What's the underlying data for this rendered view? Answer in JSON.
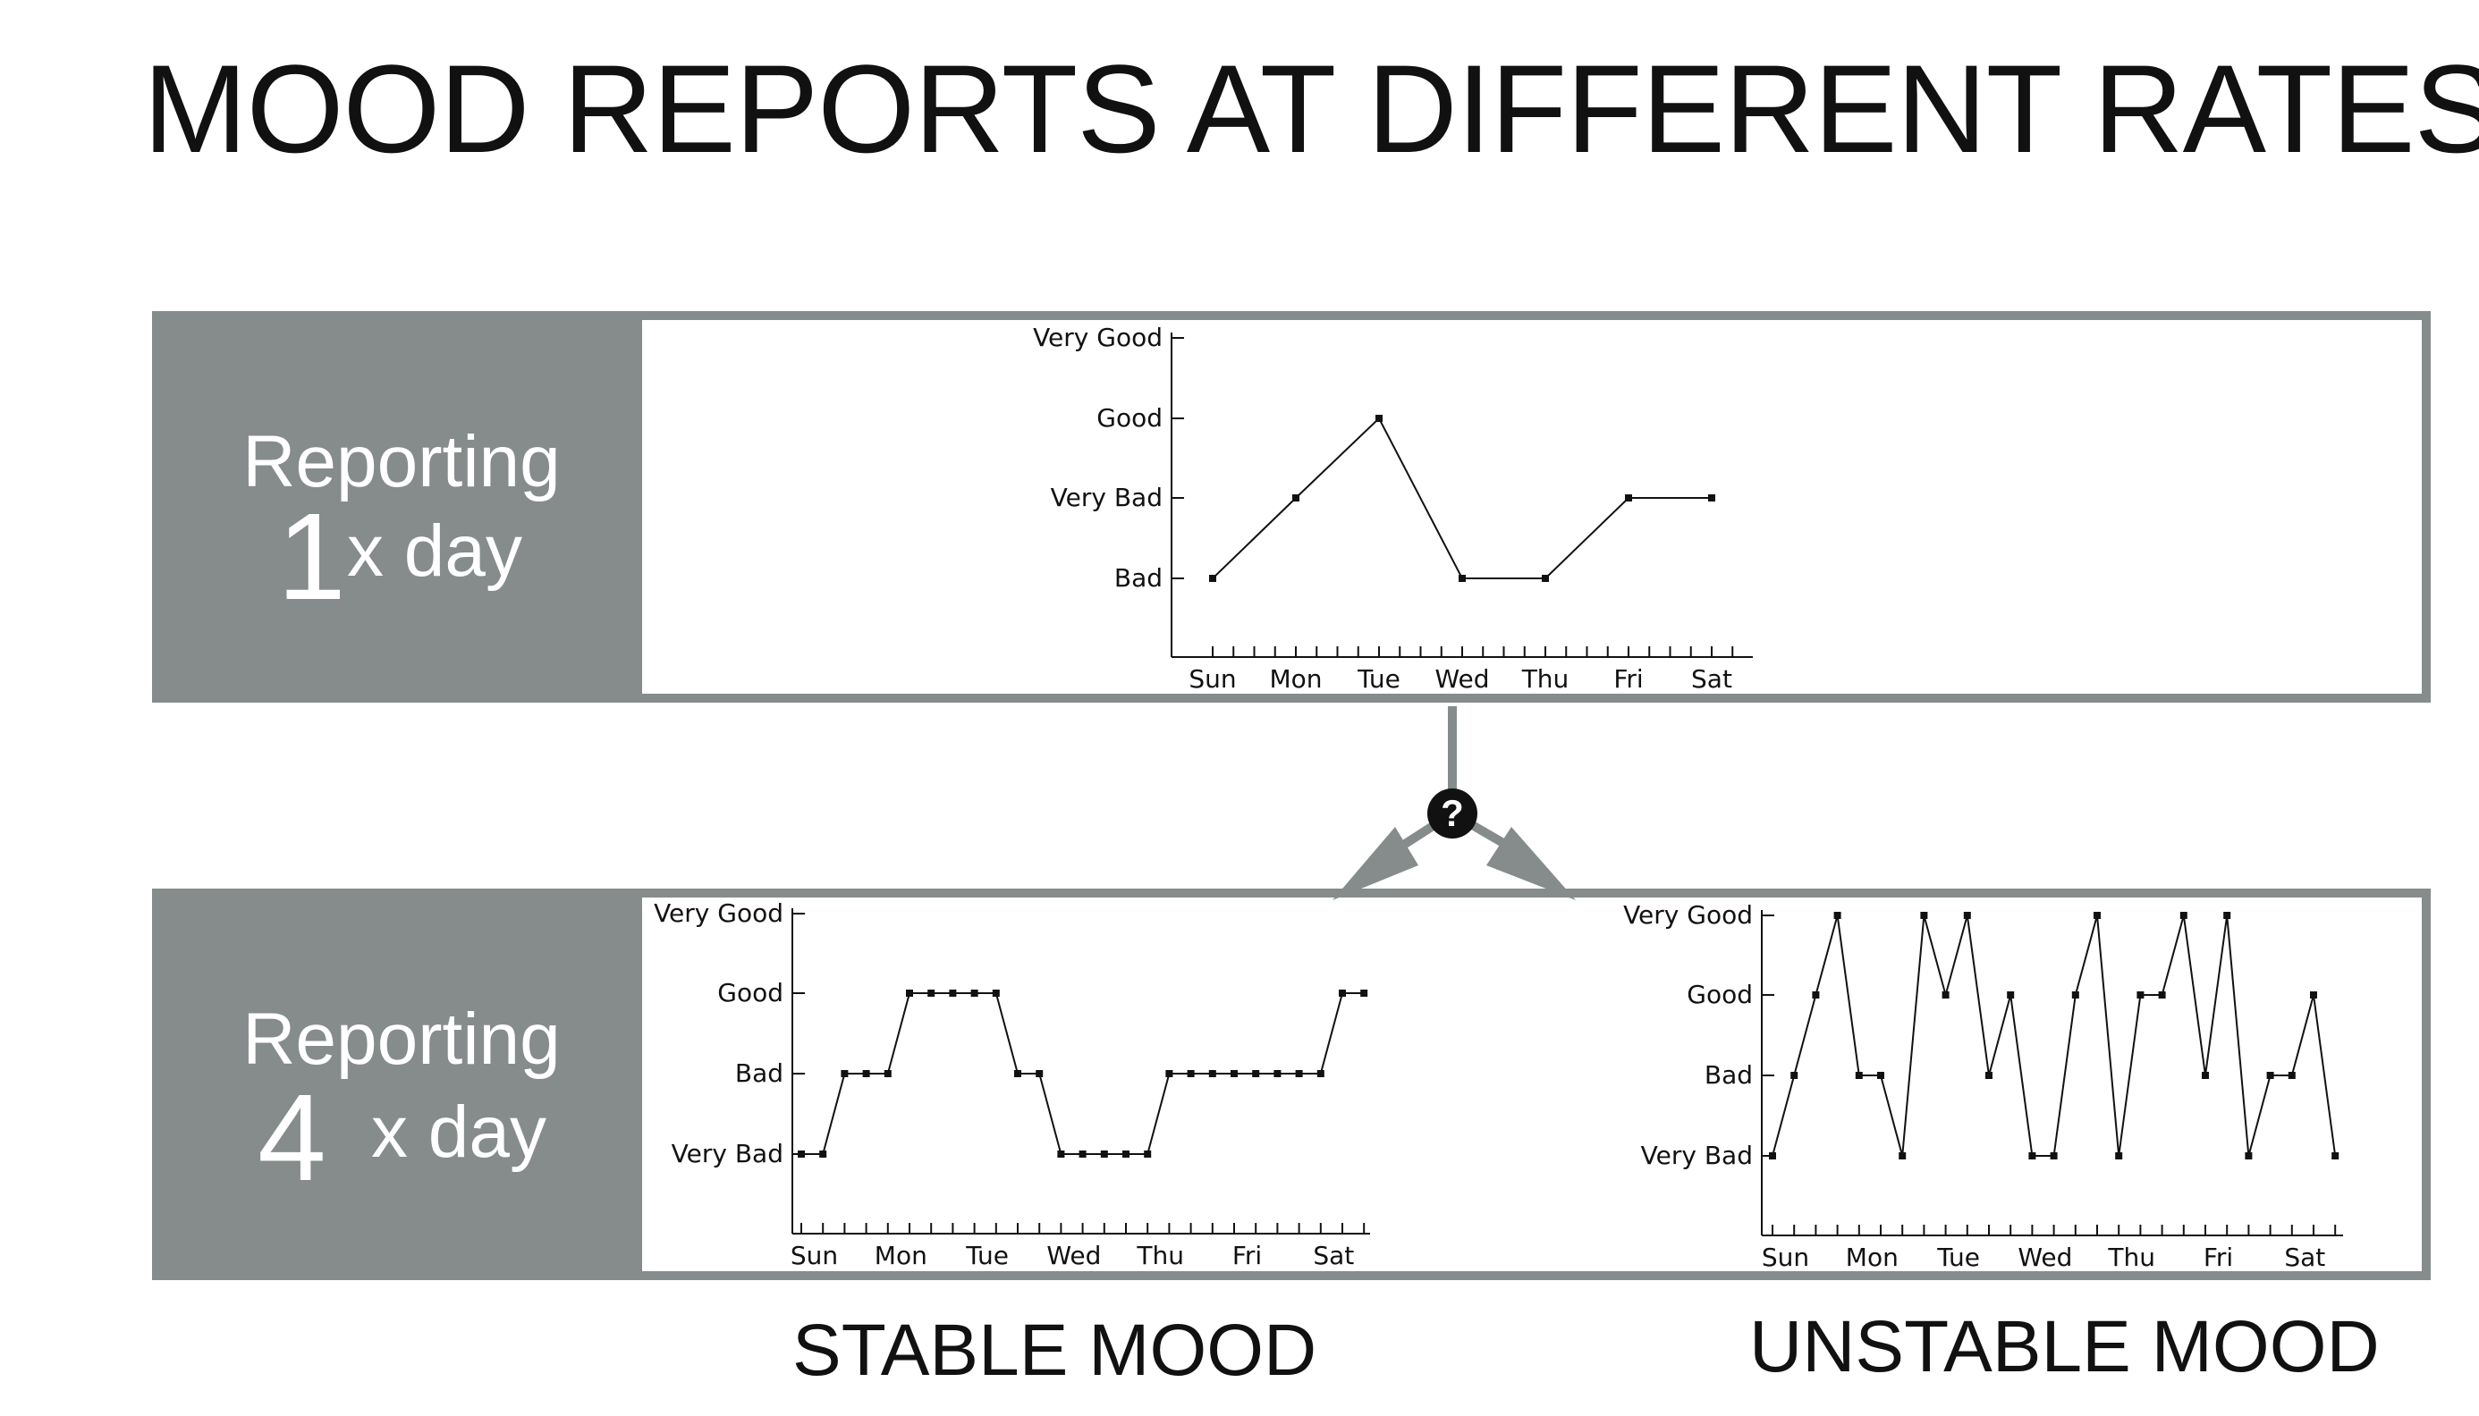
{
  "title": "MOOD REPORTS AT DIFFERENT RATES",
  "rows": [
    {
      "word": "Reporting",
      "number": "1",
      "rate": "x day"
    },
    {
      "word": "Reporting",
      "number": "4",
      "rate": "x day"
    }
  ],
  "connector_badge": "?",
  "captions": {
    "stable": "STABLE MOOD",
    "unstable": "UNSTABLE MOOD"
  },
  "colors": {
    "panel": "#858c8b",
    "line": "#111111"
  },
  "chart_data": [
    {
      "type": "line",
      "points_per_day": 1,
      "y_levels_top_to_bottom": [
        "Very Good",
        "Good",
        "Very Bad",
        "Bad"
      ],
      "x_tick_labels": [
        "Sun",
        "Mon",
        "Tue",
        "Wed",
        "Thu",
        "Fri",
        "Sat"
      ],
      "series": [
        {
          "values": [
            "Bad",
            "Very Bad",
            "Good",
            "Bad",
            "Bad",
            "Very Bad",
            "Very Bad"
          ]
        }
      ]
    },
    {
      "type": "line",
      "points_per_day": 4,
      "y_levels_top_to_bottom": [
        "Very Good",
        "Good",
        "Bad",
        "Very Bad"
      ],
      "x_tick_labels": [
        "Sun",
        "Mon",
        "Tue",
        "Wed",
        "Thu",
        "Fri",
        "Sat"
      ],
      "series": [
        {
          "values": [
            "Very Bad",
            "Very Bad",
            "Bad",
            "Bad",
            "Bad",
            "Good",
            "Good",
            "Good",
            "Good",
            "Good",
            "Bad",
            "Bad",
            "Very Bad",
            "Very Bad",
            "Very Bad",
            "Very Bad",
            "Very Bad",
            "Bad",
            "Bad",
            "Bad",
            "Bad",
            "Bad",
            "Bad",
            "Bad",
            "Bad",
            "Good",
            "Good"
          ]
        }
      ]
    },
    {
      "type": "line",
      "points_per_day": 4,
      "y_levels_top_to_bottom": [
        "Very Good",
        "Good",
        "Bad",
        "Very Bad"
      ],
      "x_tick_labels": [
        "Sun",
        "Mon",
        "Tue",
        "Wed",
        "Thu",
        "Fri",
        "Sat"
      ],
      "series": [
        {
          "values": [
            "Very Bad",
            "Bad",
            "Good",
            "Very Good",
            "Bad",
            "Bad",
            "Very Bad",
            "Very Good",
            "Good",
            "Very Good",
            "Bad",
            "Good",
            "Very Bad",
            "Very Bad",
            "Good",
            "Very Good",
            "Very Bad",
            "Good",
            "Good",
            "Very Good",
            "Bad",
            "Very Good",
            "Very Bad",
            "Bad",
            "Bad",
            "Good",
            "Very Bad"
          ]
        }
      ]
    }
  ]
}
